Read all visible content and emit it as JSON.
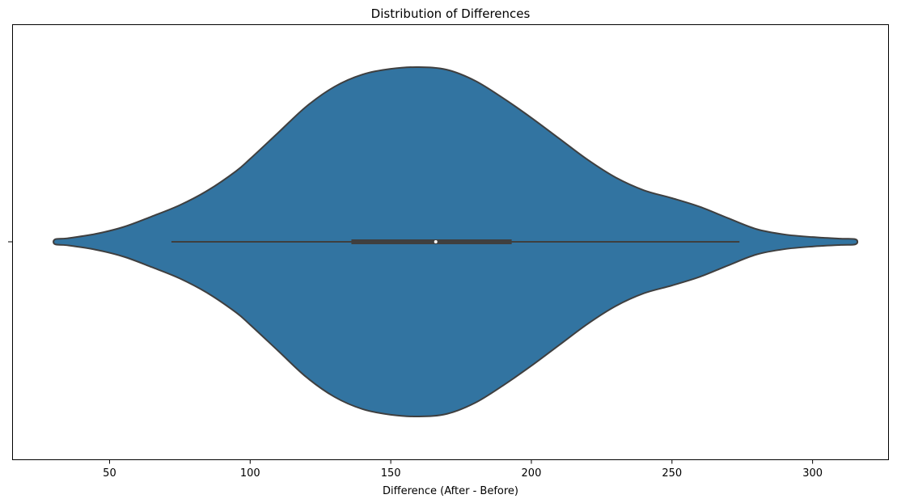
{
  "chart_data": {
    "type": "violin",
    "title": "Distribution of Differences",
    "xlabel": "Difference (After - Before)",
    "ylabel": "",
    "xlim": [
      15.5,
      327
    ],
    "xticks": [
      50,
      100,
      150,
      200,
      250,
      300
    ],
    "grid": false,
    "legend": "none",
    "color": "#3274a1",
    "edge_color": "#3f3f3f",
    "violin": {
      "density_profile": [
        [
          30.6,
          0.014
        ],
        [
          35,
          0.02
        ],
        [
          45,
          0.045
        ],
        [
          55,
          0.085
        ],
        [
          65,
          0.145
        ],
        [
          75,
          0.21
        ],
        [
          85,
          0.295
        ],
        [
          95,
          0.405
        ],
        [
          100,
          0.475
        ],
        [
          110,
          0.625
        ],
        [
          120,
          0.775
        ],
        [
          130,
          0.888
        ],
        [
          140,
          0.958
        ],
        [
          150,
          0.99
        ],
        [
          160,
          1.0
        ],
        [
          170,
          0.985
        ],
        [
          180,
          0.922
        ],
        [
          190,
          0.822
        ],
        [
          200,
          0.71
        ],
        [
          210,
          0.59
        ],
        [
          220,
          0.47
        ],
        [
          230,
          0.368
        ],
        [
          240,
          0.295
        ],
        [
          250,
          0.25
        ],
        [
          260,
          0.2
        ],
        [
          270,
          0.135
        ],
        [
          280,
          0.073
        ],
        [
          290,
          0.042
        ],
        [
          300,
          0.027
        ],
        [
          310,
          0.018
        ],
        [
          315.3,
          0.014
        ]
      ],
      "whisker_low": 72,
      "q1": 136,
      "median": 166,
      "q3": 193,
      "whisker_high": 274
    }
  }
}
